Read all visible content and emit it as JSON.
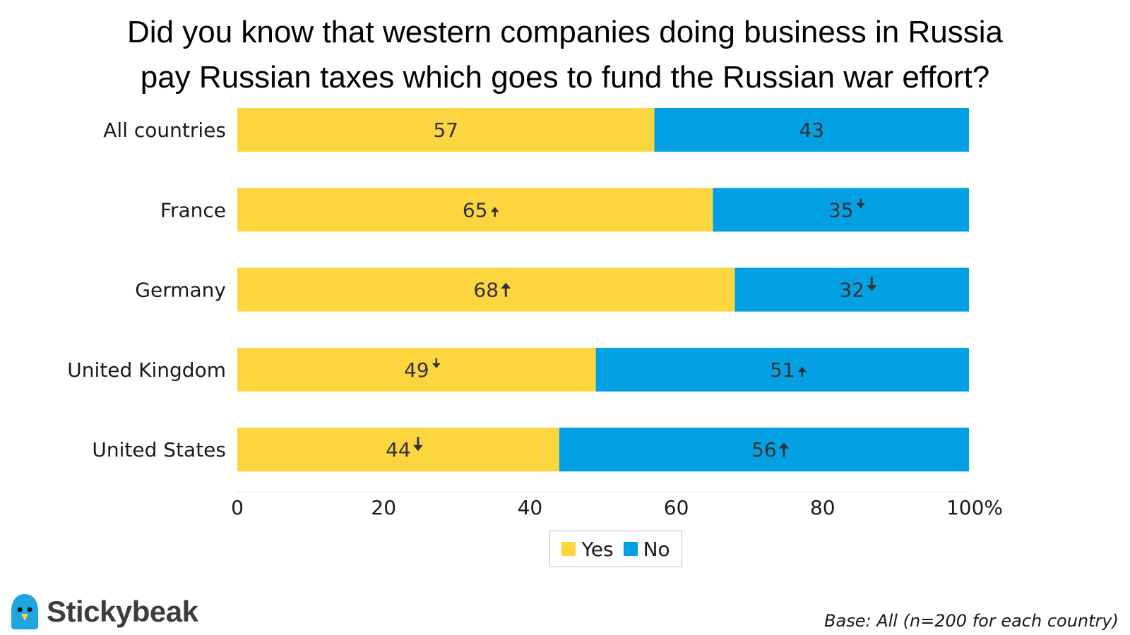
{
  "chart_data": {
    "type": "bar",
    "orientation": "horizontal",
    "stacked": true,
    "title_lines": [
      "Did you know that western companies doing business in Russia",
      "pay Russian taxes which goes to fund the Russian war effort?"
    ],
    "categories": [
      "All countries",
      "France",
      "Germany",
      "United Kingdom",
      "United States"
    ],
    "series": [
      {
        "name": "Yes",
        "color": "#FDD53F",
        "values": [
          57,
          65,
          68,
          49,
          44
        ],
        "change": [
          "none",
          "up",
          "up",
          "down",
          "down"
        ]
      },
      {
        "name": "No",
        "color": "#03A0E3",
        "values": [
          43,
          35,
          32,
          51,
          56
        ],
        "change": [
          "none",
          "down",
          "down",
          "up",
          "up"
        ]
      }
    ],
    "xlim": [
      0,
      100
    ],
    "xticks": [
      0,
      20,
      40,
      60,
      80,
      100
    ],
    "xtick_labels": [
      "0",
      "20",
      "40",
      "60",
      "80",
      "100%"
    ],
    "legend_position": "bottom",
    "grid": false
  },
  "footer": {
    "brand_name": "Stickybeak",
    "base_note": "Base: All (n=200 for each country)"
  },
  "colors": {
    "logo_blue": "#1FA6E0",
    "logo_yellow": "#FDD53F",
    "arrow": "#333333"
  }
}
